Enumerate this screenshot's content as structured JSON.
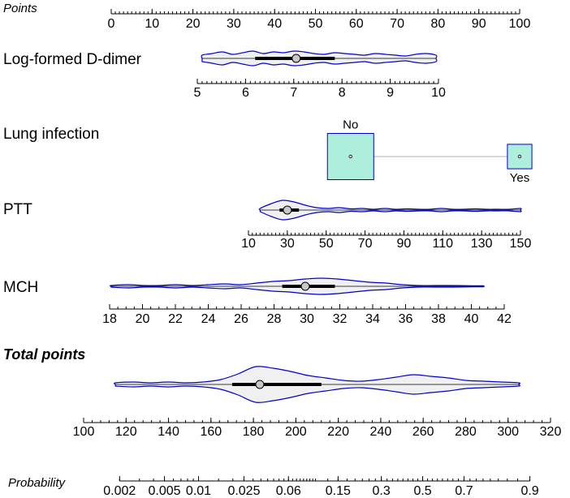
{
  "colors": {
    "violin_stroke": "#0000cc",
    "violin_fill": "#f0f0f0",
    "box_fill": "#aeeedd",
    "box_stroke": "#0000cc",
    "connector": "#b0b0b0",
    "median_dot": "#c8c8c8"
  },
  "chart_data": {
    "type": "nomogram",
    "axes": [
      {
        "id": "points",
        "title": "Points",
        "ticks": [
          0,
          10,
          20,
          30,
          40,
          50,
          60,
          70,
          80,
          90,
          100
        ],
        "tick_labels": [
          "0",
          "10",
          "20",
          "30",
          "40",
          "50",
          "60",
          "70",
          "80",
          "90",
          "100"
        ]
      },
      {
        "id": "ddimer",
        "title": "Log-formed D-dimer",
        "ticks": [
          5,
          6,
          7,
          8,
          9,
          10
        ],
        "tick_labels": [
          "5",
          "6",
          "7",
          "8",
          "9",
          "10"
        ],
        "distribution": {
          "range": [
            5.1,
            9.95
          ],
          "q1": 6.2,
          "median": 7.05,
          "q3": 7.85,
          "halfwidth": [
            4,
            6,
            8,
            5,
            7,
            9,
            6,
            8,
            7,
            9,
            8,
            6,
            5,
            7,
            6,
            5,
            4,
            6,
            5,
            4,
            3,
            5,
            6,
            4
          ]
        }
      },
      {
        "id": "lung",
        "title": "Lung infection",
        "categories": [
          {
            "label": "No",
            "points": 58.6,
            "share": 1.0
          },
          {
            "label": "Yes",
            "points": 100,
            "share": 0.28
          }
        ]
      },
      {
        "id": "ptt",
        "title": "PTT",
        "ticks": [
          10,
          30,
          50,
          70,
          90,
          110,
          130,
          150
        ],
        "tick_labels": [
          "10",
          "30",
          "50",
          "70",
          "90",
          "110",
          "130",
          "150"
        ],
        "distribution": {
          "range": [
            16,
            150
          ],
          "q1": 26,
          "median": 30,
          "q3": 36,
          "halfwidth": [
            2,
            8,
            12,
            10,
            6,
            3,
            2,
            3,
            1.5,
            2,
            1,
            2,
            1,
            1.5,
            1,
            1,
            2,
            1,
            1,
            1.5,
            1,
            1,
            1,
            2
          ]
        }
      },
      {
        "id": "mch",
        "title": "MCH",
        "ticks": [
          18,
          20,
          22,
          24,
          26,
          28,
          30,
          32,
          34,
          36,
          38,
          40,
          42
        ],
        "tick_labels": [
          "18",
          "20",
          "22",
          "24",
          "26",
          "28",
          "30",
          "32",
          "34",
          "36",
          "38",
          "40",
          "42"
        ],
        "distribution": {
          "range": [
            18.1,
            40.7
          ],
          "q1": 28.5,
          "median": 29.9,
          "q3": 31.7,
          "halfwidth": [
            1,
            2,
            1,
            1,
            2,
            1,
            2,
            3,
            2,
            4,
            6,
            7,
            9,
            10,
            9,
            7,
            5,
            4,
            2,
            1,
            1,
            1,
            0.8,
            0.6
          ]
        }
      },
      {
        "id": "total",
        "title": "Total points",
        "ticks": [
          100,
          120,
          140,
          160,
          180,
          200,
          220,
          240,
          260,
          280,
          300,
          320
        ],
        "tick_labels": [
          "100",
          "120",
          "140",
          "160",
          "180",
          "200",
          "220",
          "240",
          "260",
          "280",
          "300",
          "320"
        ],
        "distribution": {
          "range": [
            115,
            305
          ],
          "q1": 170,
          "median": 183,
          "q3": 212,
          "halfwidth": [
            2,
            3,
            2,
            3,
            2,
            3,
            6,
            13,
            22,
            20,
            16,
            11,
            8,
            5,
            4,
            6,
            9,
            12,
            10,
            8,
            5,
            4,
            3,
            2
          ]
        }
      },
      {
        "id": "prob",
        "title": "Probability",
        "ticks": [
          0.002,
          0.005,
          0.01,
          0.025,
          0.06,
          0.15,
          0.3,
          0.5,
          0.7,
          0.9
        ],
        "tick_labels": [
          "0.002",
          "0.005",
          "0.01",
          "0.025",
          "0.06",
          "0.15",
          "0.3",
          "0.5",
          "0.7",
          "0.9"
        ]
      }
    ]
  }
}
